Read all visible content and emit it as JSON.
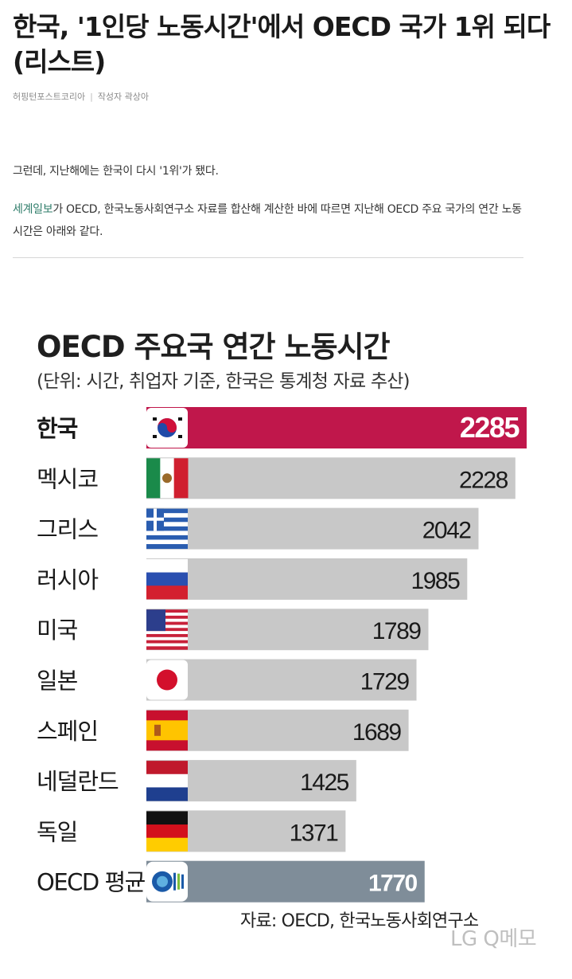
{
  "article": {
    "headline": "한국, '1인당 노동시간'에서 OECD 국가 1위 되다(리스트)",
    "publisher": "허핑턴포스트코리아",
    "separator": "|",
    "author": "작성자 곽상아",
    "paragraph1": "그런데, 지난해에는 한국이 다시 '1위'가 됐다.",
    "paragraph2_link": "세계일보",
    "paragraph2_rest": "가 OECD, 한국노동사회연구소 자료를 합산해 계산한 바에 따르면 지난해 OECD 주요 국가의 연간 노동시간은 아래와 같다."
  },
  "chart_data": {
    "type": "bar",
    "orientation": "horizontal",
    "title": "OECD 주요국 연간 노동시간",
    "subtitle": "(단위: 시간, 취업자 기준, 한국은 통계청 자료 추산)",
    "source": "자료: OECD, 한국노동사회연구소",
    "categories": [
      "한국",
      "멕시코",
      "그리스",
      "러시아",
      "미국",
      "일본",
      "스페인",
      "네덜란드",
      "독일",
      "OECD 평균"
    ],
    "values": [
      2285,
      2228,
      2042,
      1985,
      1789,
      1729,
      1689,
      1425,
      1371,
      1770
    ],
    "flags": [
      "korea-flag-icon",
      "mexico-flag-icon",
      "greece-flag-icon",
      "russia-flag-icon",
      "usa-flag-icon",
      "japan-flag-icon",
      "spain-flag-icon",
      "netherlands-flag-icon",
      "germany-flag-icon",
      "oecd-logo-icon"
    ],
    "highlight_index": 0,
    "average_index": 9,
    "colors": {
      "highlight": "#c0174b",
      "default": "#c8c8c8",
      "average": "#7f8d99",
      "label_dark": "#1a1a1a",
      "label_light": "#ffffff"
    }
  },
  "watermark": "LG Q메모"
}
